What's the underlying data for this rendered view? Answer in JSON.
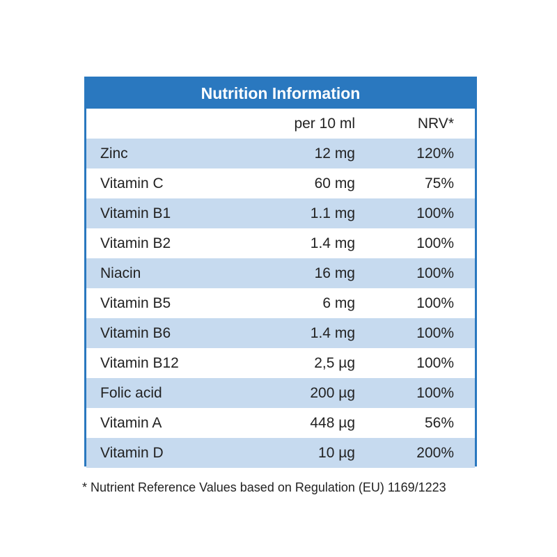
{
  "table": {
    "title": "Nutrition Information",
    "header": [
      "",
      "per 10 ml",
      "NRV*"
    ],
    "rows": [
      [
        "Zinc",
        "12 mg",
        "120%"
      ],
      [
        "Vitamin C",
        "60 mg",
        "75%"
      ],
      [
        "Vitamin B1",
        "1.1 mg",
        "100%"
      ],
      [
        "Vitamin B2",
        "1.4 mg",
        "100%"
      ],
      [
        "Niacin",
        "16 mg",
        "100%"
      ],
      [
        "Vitamin B5",
        "6 mg",
        "100%"
      ],
      [
        "Vitamin B6",
        "1.4 mg",
        "100%"
      ],
      [
        "Vitamin B12",
        "2,5 µg",
        "100%"
      ],
      [
        "Folic acid",
        "200 µg",
        "100%"
      ],
      [
        "Vitamin A",
        "448 µg",
        "56%"
      ],
      [
        "Vitamin D",
        "10 µg",
        "200%"
      ]
    ]
  },
  "footnote": "* Nutrient Reference Values based on  Regulation (EU) 1169/1223"
}
